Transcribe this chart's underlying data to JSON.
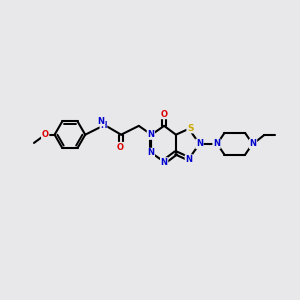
{
  "bg_color": "#e8e8eb",
  "bond_color": "#000000",
  "atom_colors": {
    "N": "#0000cc",
    "O": "#dd0000",
    "S": "#ccaa00",
    "C": "#000000"
  },
  "figsize": [
    3.0,
    3.0
  ],
  "dpi": 100
}
